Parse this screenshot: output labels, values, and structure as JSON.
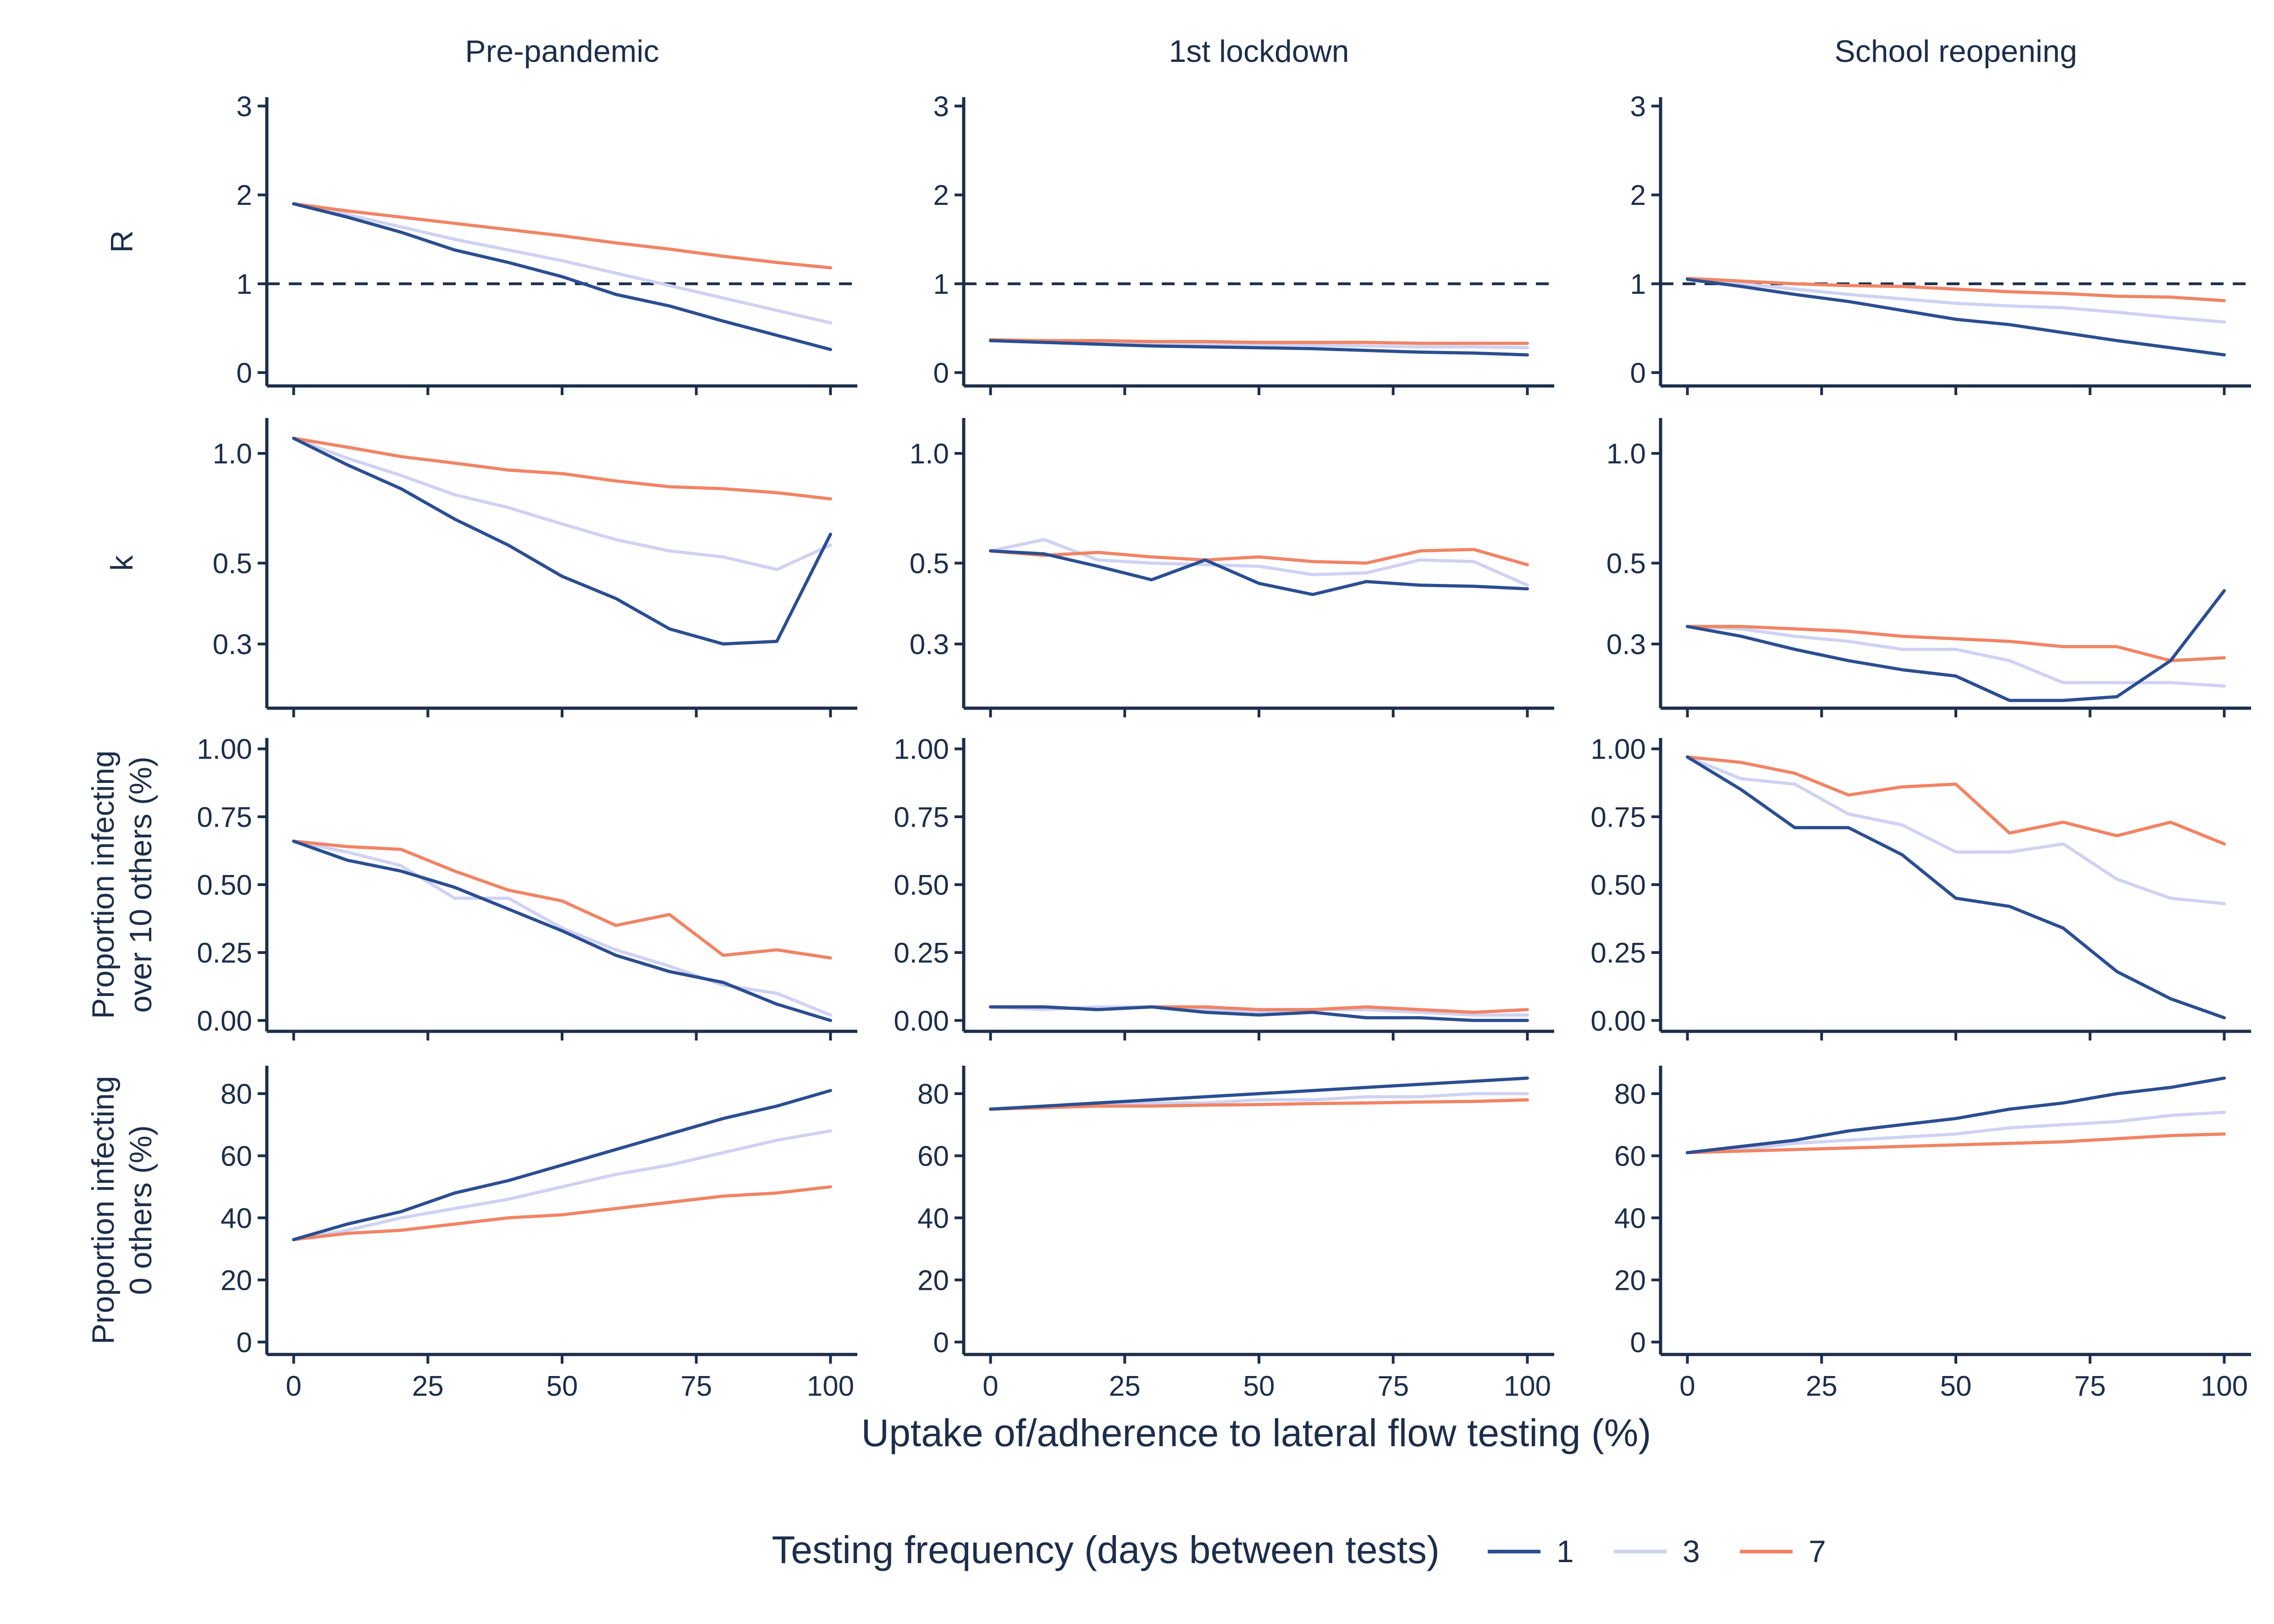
{
  "figure": {
    "xlabel": "Uptake of/adherence to lateral flow testing (%)",
    "legend_title": "Testing frequency (days between tests)",
    "legend_position": "bottom"
  },
  "chart_data": {
    "type": "line",
    "x": [
      0,
      10,
      20,
      30,
      40,
      50,
      60,
      70,
      80,
      90,
      100
    ],
    "x_ticks": [
      0,
      25,
      50,
      75,
      100
    ],
    "xlim": [
      -5,
      105
    ],
    "columns": [
      "Pre-pandemic",
      "1st lockdown",
      "School reopening"
    ],
    "series_meta": [
      {
        "name": "1",
        "color": "#2b4e91"
      },
      {
        "name": "3",
        "color": "#cfd2f2"
      },
      {
        "name": "7",
        "color": "#f08465"
      }
    ],
    "rows": [
      {
        "ylabel": [
          "R"
        ],
        "scale": "linear",
        "ylim": [
          -0.15,
          3.1
        ],
        "ticks": [
          0,
          1,
          2,
          3
        ],
        "tick_labels": [
          "0",
          "1",
          "2",
          "3"
        ],
        "hline": 1,
        "panels": [
          {
            "series": [
              [
                1.9,
                1.75,
                1.58,
                1.38,
                1.24,
                1.08,
                0.88,
                0.75,
                0.58,
                0.42,
                0.26
              ],
              [
                1.9,
                1.78,
                1.64,
                1.5,
                1.38,
                1.26,
                1.12,
                0.98,
                0.84,
                0.7,
                0.56
              ],
              [
                1.9,
                1.82,
                1.75,
                1.68,
                1.61,
                1.54,
                1.46,
                1.39,
                1.31,
                1.24,
                1.18
              ]
            ]
          },
          {
            "series": [
              [
                0.36,
                0.34,
                0.32,
                0.3,
                0.29,
                0.28,
                0.27,
                0.25,
                0.23,
                0.22,
                0.2
              ],
              [
                0.36,
                0.35,
                0.34,
                0.33,
                0.32,
                0.32,
                0.31,
                0.3,
                0.29,
                0.29,
                0.28
              ],
              [
                0.37,
                0.36,
                0.36,
                0.35,
                0.35,
                0.34,
                0.34,
                0.34,
                0.33,
                0.33,
                0.33
              ]
            ]
          },
          {
            "series": [
              [
                1.05,
                0.97,
                0.88,
                0.8,
                0.7,
                0.6,
                0.54,
                0.45,
                0.36,
                0.28,
                0.2
              ],
              [
                1.05,
                1.0,
                0.94,
                0.88,
                0.83,
                0.78,
                0.75,
                0.73,
                0.68,
                0.62,
                0.57
              ],
              [
                1.06,
                1.03,
                1.0,
                0.98,
                0.97,
                0.94,
                0.91,
                0.89,
                0.86,
                0.85,
                0.81
              ]
            ]
          }
        ]
      },
      {
        "ylabel": [
          "k"
        ],
        "scale": "log",
        "ylim": [
          0.2,
          1.25
        ],
        "ticks": [
          0.3,
          0.5,
          1.0
        ],
        "tick_labels": [
          "0.3",
          "0.5",
          "1.0"
        ],
        "panels": [
          {
            "series": [
              [
                1.1,
                0.93,
                0.8,
                0.66,
                0.56,
                0.46,
                0.4,
                0.33,
                0.3,
                0.305,
                0.6
              ],
              [
                1.1,
                0.97,
                0.87,
                0.77,
                0.71,
                0.64,
                0.58,
                0.54,
                0.52,
                0.48,
                0.56
              ],
              [
                1.1,
                1.04,
                0.98,
                0.94,
                0.9,
                0.88,
                0.84,
                0.81,
                0.8,
                0.78,
                0.75
              ]
            ]
          },
          {
            "series": [
              [
                0.54,
                0.53,
                0.49,
                0.45,
                0.51,
                0.44,
                0.41,
                0.445,
                0.435,
                0.432,
                0.425
              ],
              [
                0.54,
                0.58,
                0.51,
                0.5,
                0.495,
                0.49,
                0.465,
                0.47,
                0.51,
                0.505,
                0.435
              ],
              [
                0.54,
                0.525,
                0.535,
                0.52,
                0.51,
                0.52,
                0.505,
                0.5,
                0.54,
                0.545,
                0.495
              ]
            ]
          },
          {
            "series": [
              [
                0.335,
                0.315,
                0.29,
                0.27,
                0.255,
                0.245,
                0.21,
                0.21,
                0.215,
                0.27,
                0.42
              ],
              [
                0.335,
                0.33,
                0.315,
                0.305,
                0.29,
                0.29,
                0.27,
                0.235,
                0.235,
                0.235,
                0.23
              ],
              [
                0.335,
                0.335,
                0.33,
                0.325,
                0.315,
                0.31,
                0.305,
                0.295,
                0.295,
                0.27,
                0.275
              ]
            ]
          }
        ]
      },
      {
        "ylabel": [
          "Proportion infecting",
          "over 10 others (%)"
        ],
        "scale": "linear",
        "ylim": [
          -0.04,
          1.04
        ],
        "ticks": [
          0,
          0.25,
          0.5,
          0.75,
          1.0
        ],
        "tick_labels": [
          "0.00",
          "0.25",
          "0.50",
          "0.75",
          "1.00"
        ],
        "panels": [
          {
            "series": [
              [
                0.66,
                0.59,
                0.55,
                0.49,
                0.41,
                0.33,
                0.24,
                0.18,
                0.14,
                0.06,
                0.0
              ],
              [
                0.66,
                0.62,
                0.57,
                0.45,
                0.45,
                0.34,
                0.26,
                0.2,
                0.13,
                0.1,
                0.02
              ],
              [
                0.66,
                0.64,
                0.63,
                0.55,
                0.48,
                0.44,
                0.35,
                0.39,
                0.24,
                0.26,
                0.23
              ]
            ]
          },
          {
            "series": [
              [
                0.05,
                0.05,
                0.04,
                0.05,
                0.03,
                0.02,
                0.03,
                0.01,
                0.01,
                0.0,
                0.0
              ],
              [
                0.05,
                0.04,
                0.05,
                0.05,
                0.04,
                0.03,
                0.04,
                0.04,
                0.03,
                0.02,
                0.02
              ],
              [
                0.05,
                0.05,
                0.04,
                0.05,
                0.05,
                0.04,
                0.04,
                0.05,
                0.04,
                0.03,
                0.04
              ]
            ]
          },
          {
            "series": [
              [
                0.97,
                0.85,
                0.71,
                0.71,
                0.61,
                0.45,
                0.42,
                0.34,
                0.18,
                0.08,
                0.01
              ],
              [
                0.97,
                0.89,
                0.87,
                0.76,
                0.72,
                0.62,
                0.62,
                0.65,
                0.52,
                0.45,
                0.43
              ],
              [
                0.97,
                0.95,
                0.91,
                0.83,
                0.86,
                0.87,
                0.69,
                0.73,
                0.68,
                0.73,
                0.65
              ]
            ]
          }
        ]
      },
      {
        "ylabel": [
          "Proportion infecting",
          "0 others (%)"
        ],
        "scale": "linear",
        "ylim": [
          -4,
          89
        ],
        "ticks": [
          0,
          20,
          40,
          60,
          80
        ],
        "tick_labels": [
          "0",
          "20",
          "40",
          "60",
          "80"
        ],
        "panels": [
          {
            "series": [
              [
                33,
                38,
                42,
                48,
                52,
                57,
                62,
                67,
                72,
                76,
                81
              ],
              [
                33,
                36,
                40,
                43,
                46,
                50,
                54,
                57,
                61,
                65,
                68
              ],
              [
                33,
                35,
                36,
                38,
                40,
                41,
                43,
                45,
                47,
                48,
                50
              ]
            ]
          },
          {
            "series": [
              [
                75,
                76,
                77,
                78,
                79,
                80,
                81,
                82,
                83,
                84,
                85
              ],
              [
                75,
                76,
                76,
                77,
                77,
                78,
                78,
                79,
                79,
                80,
                80
              ],
              [
                75,
                75.5,
                76,
                76,
                76.3,
                76.5,
                76.8,
                77,
                77.3,
                77.5,
                78
              ]
            ]
          },
          {
            "series": [
              [
                61,
                63,
                65,
                68,
                70,
                72,
                75,
                77,
                80,
                82,
                85
              ],
              [
                61,
                62,
                64,
                65,
                66,
                67,
                69,
                70,
                71,
                73,
                74
              ],
              [
                61,
                61.5,
                62,
                62.5,
                63,
                63.5,
                64,
                64.5,
                65.5,
                66.5,
                67
              ]
            ]
          }
        ]
      }
    ]
  }
}
